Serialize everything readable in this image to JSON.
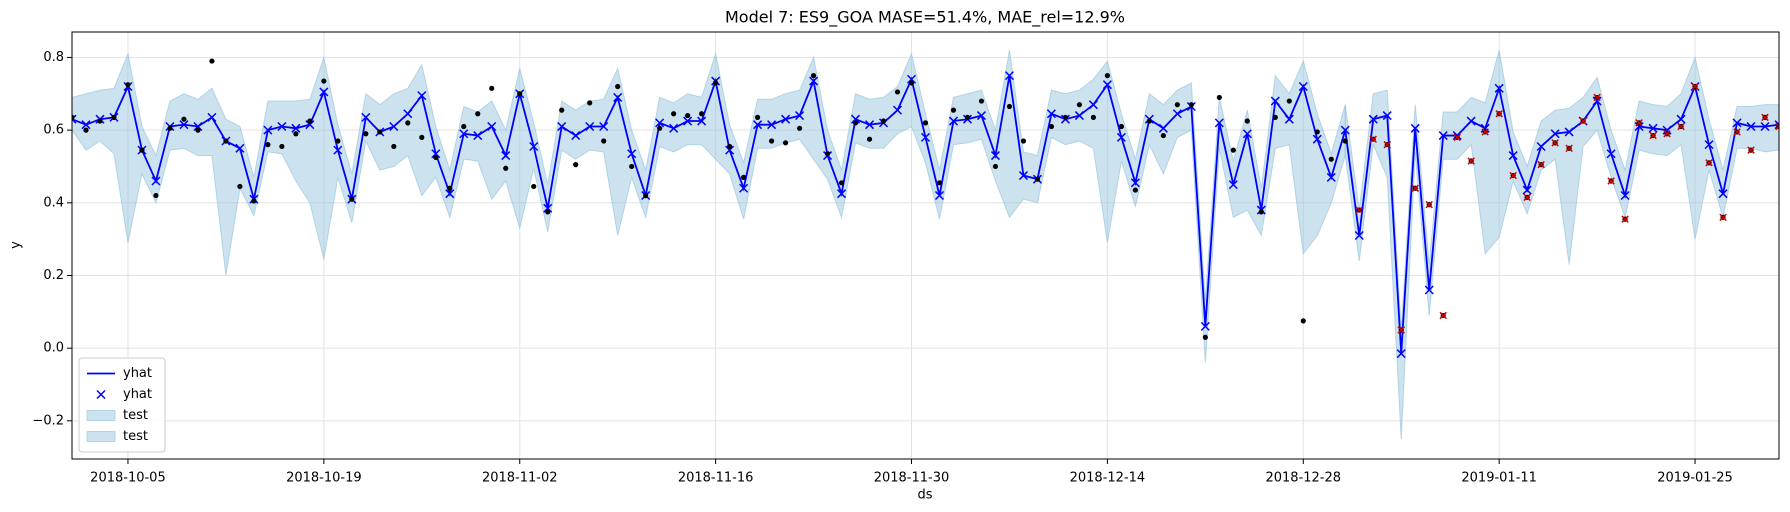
{
  "chart_data": {
    "type": "line",
    "title": "Model 7: ES9_GOA MASE=51.4%, MAE_rel=12.9%",
    "x_label": "ds",
    "y_label": "y",
    "xlim": [
      "2018-10-01",
      "2019-01-31"
    ],
    "xticks": [
      "2018-10-05",
      "2018-10-19",
      "2018-11-02",
      "2018-11-16",
      "2018-11-30",
      "2018-12-14",
      "2018-12-28",
      "2019-01-11",
      "2019-01-25"
    ],
    "ylim": [
      -0.305,
      0.87
    ],
    "yticks": [
      {
        "value": -0.2,
        "label": "−0.2"
      },
      {
        "value": 0,
        "label": "0.0"
      },
      0.2,
      0.4,
      0.6,
      0.8
    ],
    "grid": true,
    "legend": "lower left",
    "x": [
      "2018-10-01",
      "2018-10-02",
      "2018-10-03",
      "2018-10-04",
      "2018-10-05",
      "2018-10-06",
      "2018-10-07",
      "2018-10-08",
      "2018-10-09",
      "2018-10-10",
      "2018-10-11",
      "2018-10-12",
      "2018-10-13",
      "2018-10-14",
      "2018-10-15",
      "2018-10-16",
      "2018-10-17",
      "2018-10-18",
      "2018-10-19",
      "2018-10-20",
      "2018-10-21",
      "2018-10-22",
      "2018-10-23",
      "2018-10-24",
      "2018-10-25",
      "2018-10-26",
      "2018-10-27",
      "2018-10-28",
      "2018-10-29",
      "2018-10-30",
      "2018-10-31",
      "2018-11-01",
      "2018-11-02",
      "2018-11-03",
      "2018-11-04",
      "2018-11-05",
      "2018-11-06",
      "2018-11-07",
      "2018-11-08",
      "2018-11-09",
      "2018-11-10",
      "2018-11-11",
      "2018-11-12",
      "2018-11-13",
      "2018-11-14",
      "2018-11-15",
      "2018-11-16",
      "2018-11-17",
      "2018-11-18",
      "2018-11-19",
      "2018-11-20",
      "2018-11-21",
      "2018-11-22",
      "2018-11-23",
      "2018-11-24",
      "2018-11-25",
      "2018-11-26",
      "2018-11-27",
      "2018-11-28",
      "2018-11-29",
      "2018-11-30",
      "2018-12-01",
      "2018-12-02",
      "2018-12-03",
      "2018-12-04",
      "2018-12-05",
      "2018-12-06",
      "2018-12-07",
      "2018-12-08",
      "2018-12-09",
      "2018-12-10",
      "2018-12-11",
      "2018-12-12",
      "2018-12-13",
      "2018-12-14",
      "2018-12-15",
      "2018-12-16",
      "2018-12-17",
      "2018-12-18",
      "2018-12-19",
      "2018-12-20",
      "2018-12-21",
      "2018-12-22",
      "2018-12-23",
      "2018-12-24",
      "2018-12-25",
      "2018-12-26",
      "2018-12-27",
      "2018-12-28",
      "2018-12-29",
      "2018-12-30",
      "2018-12-31",
      "2019-01-01",
      "2019-01-02",
      "2019-01-03",
      "2019-01-04",
      "2019-01-05",
      "2019-01-06",
      "2019-01-07",
      "2019-01-08",
      "2019-01-09",
      "2019-01-10",
      "2019-01-11",
      "2019-01-12",
      "2019-01-13",
      "2019-01-14",
      "2019-01-15",
      "2019-01-16",
      "2019-01-17",
      "2019-01-18",
      "2019-01-19",
      "2019-01-20",
      "2019-01-21",
      "2019-01-22",
      "2019-01-23",
      "2019-01-24",
      "2019-01-25",
      "2019-01-26",
      "2019-01-27",
      "2019-01-28",
      "2019-01-29",
      "2019-01-30",
      "2019-01-31"
    ],
    "series": [
      {
        "name": "yhat",
        "color": "#0000ff",
        "line": true,
        "marker": "x",
        "values": [
          0.63,
          0.615,
          0.63,
          0.635,
          0.72,
          0.545,
          0.46,
          0.61,
          0.615,
          0.61,
          0.635,
          0.57,
          0.55,
          0.41,
          0.6,
          0.61,
          0.605,
          0.615,
          0.705,
          0.545,
          0.41,
          0.635,
          0.595,
          0.61,
          0.645,
          0.695,
          0.535,
          0.425,
          0.59,
          0.585,
          0.61,
          0.53,
          0.7,
          0.555,
          0.385,
          0.61,
          0.585,
          0.61,
          0.61,
          0.69,
          0.535,
          0.42,
          0.62,
          0.605,
          0.625,
          0.625,
          0.735,
          0.545,
          0.44,
          0.615,
          0.615,
          0.63,
          0.64,
          0.735,
          0.53,
          0.425,
          0.63,
          0.615,
          0.62,
          0.655,
          0.74,
          0.58,
          0.42,
          0.625,
          0.63,
          0.64,
          0.53,
          0.75,
          0.475,
          0.465,
          0.645,
          0.63,
          0.64,
          0.67,
          0.725,
          0.58,
          0.455,
          0.63,
          0.605,
          0.645,
          0.665,
          0.06,
          0.62,
          0.45,
          0.59,
          0.38,
          0.68,
          0.63,
          0.72,
          0.575,
          0.47,
          0.6,
          0.31,
          0.63,
          0.64,
          -0.015,
          0.605,
          0.16,
          0.585,
          0.585,
          0.625,
          0.605,
          0.715,
          0.53,
          0.435,
          0.555,
          0.59,
          0.595,
          0.625,
          0.68,
          0.535,
          0.42,
          0.61,
          0.605,
          0.6,
          0.63,
          0.72,
          0.56,
          0.425,
          0.62,
          0.61,
          0.61,
          0.615
        ]
      },
      {
        "color": "#000000",
        "marker": "dot",
        "values": [
          0.635,
          0.6,
          0.625,
          0.635,
          0.725,
          0.545,
          0.42,
          0.605,
          0.63,
          0.6,
          0.79,
          0.57,
          0.445,
          0.405,
          0.56,
          0.555,
          0.59,
          0.625,
          0.735,
          0.57,
          0.41,
          0.59,
          0.595,
          0.555,
          0.62,
          0.58,
          0.525,
          0.44,
          0.61,
          0.645,
          0.715,
          0.495,
          0.7,
          0.445,
          0.375,
          0.655,
          0.505,
          0.675,
          0.57,
          0.72,
          0.5,
          0.42,
          0.605,
          0.645,
          0.64,
          0.645,
          0.73,
          0.555,
          0.47,
          0.635,
          0.57,
          0.565,
          0.605,
          0.75,
          0.535,
          0.455,
          0.62,
          0.575,
          0.625,
          0.705,
          0.73,
          0.62,
          0.455,
          0.655,
          0.635,
          0.68,
          0.5,
          0.665,
          0.57,
          0.465,
          0.61,
          0.635,
          0.67,
          0.635,
          0.75,
          0.61,
          0.435,
          0.625,
          0.585,
          0.67,
          0.67,
          0.03,
          0.69,
          0.545,
          0.625,
          0.375,
          0.635,
          0.68,
          0.075,
          0.595,
          0.52,
          0.57,
          null,
          null,
          null,
          null,
          null,
          null,
          null,
          null,
          null,
          null,
          null,
          null,
          null,
          null,
          null,
          null,
          null,
          null,
          null,
          null,
          null,
          null,
          null,
          null,
          null,
          null,
          null,
          null,
          null,
          null,
          null
        ]
      },
      {
        "color": "#cc0000",
        "dot_color": "#000000",
        "marker": "dotx",
        "values": [
          null,
          null,
          null,
          null,
          null,
          null,
          null,
          null,
          null,
          null,
          null,
          null,
          null,
          null,
          null,
          null,
          null,
          null,
          null,
          null,
          null,
          null,
          null,
          null,
          null,
          null,
          null,
          null,
          null,
          null,
          null,
          null,
          null,
          null,
          null,
          null,
          null,
          null,
          null,
          null,
          null,
          null,
          null,
          null,
          null,
          null,
          null,
          null,
          null,
          null,
          null,
          null,
          null,
          null,
          null,
          null,
          null,
          null,
          null,
          null,
          null,
          null,
          null,
          null,
          null,
          null,
          null,
          null,
          null,
          null,
          null,
          null,
          null,
          null,
          null,
          null,
          null,
          null,
          null,
          null,
          null,
          null,
          null,
          null,
          null,
          null,
          null,
          null,
          null,
          null,
          null,
          null,
          0.38,
          0.575,
          0.56,
          0.05,
          0.44,
          0.395,
          0.09,
          0.58,
          0.515,
          0.595,
          0.645,
          0.475,
          0.415,
          0.505,
          0.565,
          0.55,
          0.625,
          0.69,
          0.46,
          0.355,
          0.62,
          0.585,
          0.59,
          0.61,
          0.72,
          0.51,
          0.36,
          0.595,
          0.545,
          0.635,
          0.61
        ]
      }
    ],
    "bands": [
      {
        "name": "test",
        "color": "#8fc0dc",
        "upper": [
          0.69,
          0.7,
          0.71,
          0.715,
          0.81,
          0.61,
          0.53,
          0.68,
          0.7,
          0.685,
          0.715,
          0.63,
          0.61,
          0.47,
          0.68,
          0.68,
          0.68,
          0.685,
          0.8,
          0.615,
          0.48,
          0.7,
          0.67,
          0.7,
          0.715,
          0.78,
          0.61,
          0.49,
          0.665,
          0.65,
          0.68,
          0.6,
          0.77,
          0.62,
          0.45,
          0.68,
          0.655,
          0.68,
          0.685,
          0.77,
          0.6,
          0.49,
          0.69,
          0.675,
          0.7,
          0.69,
          0.81,
          0.615,
          0.51,
          0.685,
          0.685,
          0.7,
          0.71,
          0.8,
          0.6,
          0.49,
          0.7,
          0.685,
          0.69,
          0.72,
          0.81,
          0.645,
          0.49,
          0.69,
          0.7,
          0.71,
          0.6,
          0.82,
          0.54,
          0.53,
          0.71,
          0.7,
          0.71,
          0.74,
          0.79,
          0.645,
          0.52,
          0.7,
          0.67,
          0.71,
          0.73,
          0.13,
          0.69,
          0.515,
          0.655,
          0.44,
          0.75,
          0.7,
          0.79,
          0.645,
          0.535,
          0.67,
          null,
          null,
          null,
          null,
          null,
          null,
          null,
          null,
          null,
          null,
          null,
          null,
          null,
          null,
          null,
          null,
          null,
          null,
          null,
          null,
          null,
          null,
          null,
          null,
          null,
          null,
          null,
          null,
          null,
          null,
          null
        ],
        "lower": [
          0.6,
          0.545,
          0.57,
          0.535,
          0.29,
          0.48,
          0.4,
          0.545,
          0.55,
          0.53,
          0.53,
          0.2,
          0.44,
          0.365,
          0.54,
          0.535,
          0.46,
          0.4,
          0.245,
          0.47,
          0.345,
          0.57,
          0.49,
          0.5,
          0.53,
          0.42,
          0.47,
          0.36,
          0.52,
          0.515,
          0.41,
          0.46,
          0.33,
          0.495,
          0.32,
          0.545,
          0.52,
          0.545,
          0.54,
          0.31,
          0.47,
          0.36,
          0.555,
          0.54,
          0.56,
          0.56,
          0.52,
          0.48,
          0.355,
          0.55,
          0.55,
          0.565,
          0.575,
          0.52,
          0.465,
          0.36,
          0.565,
          0.55,
          0.55,
          0.59,
          0.61,
          0.51,
          0.355,
          0.56,
          0.565,
          0.575,
          0.46,
          0.36,
          0.41,
          0.4,
          0.58,
          0.56,
          0.57,
          0.55,
          0.29,
          0.515,
          0.39,
          0.56,
          0.48,
          0.58,
          0.6,
          -0.04,
          0.55,
          0.36,
          0.38,
          0.31,
          0.55,
          0.56,
          0.26,
          0.31,
          0.4,
          0.53,
          null,
          null,
          null,
          null,
          null,
          null,
          null,
          null,
          null,
          null,
          null,
          null,
          null,
          null,
          null,
          null,
          null,
          null,
          null,
          null,
          null,
          null,
          null,
          null,
          null,
          null,
          null,
          null,
          null,
          null,
          null
        ]
      },
      {
        "name": "test",
        "color": "#8fc0dc",
        "upper": [
          null,
          null,
          null,
          null,
          null,
          null,
          null,
          null,
          null,
          null,
          null,
          null,
          null,
          null,
          null,
          null,
          null,
          null,
          null,
          null,
          null,
          null,
          null,
          null,
          null,
          null,
          null,
          null,
          null,
          null,
          null,
          null,
          null,
          null,
          null,
          null,
          null,
          null,
          null,
          null,
          null,
          null,
          null,
          null,
          null,
          null,
          null,
          null,
          null,
          null,
          null,
          null,
          null,
          null,
          null,
          null,
          null,
          null,
          null,
          null,
          null,
          null,
          null,
          null,
          null,
          null,
          null,
          null,
          null,
          null,
          null,
          null,
          null,
          null,
          null,
          null,
          null,
          null,
          null,
          null,
          null,
          null,
          null,
          null,
          null,
          null,
          null,
          null,
          null,
          null,
          null,
          0.67,
          0.38,
          0.7,
          0.71,
          0.05,
          0.67,
          0.23,
          0.65,
          0.65,
          0.69,
          0.675,
          0.82,
          0.595,
          0.5,
          0.625,
          0.655,
          0.66,
          0.69,
          0.745,
          0.6,
          0.49,
          0.68,
          0.67,
          0.665,
          0.7,
          0.8,
          0.63,
          0.49,
          0.665,
          0.665,
          0.67,
          0.67
        ],
        "lower": [
          null,
          null,
          null,
          null,
          null,
          null,
          null,
          null,
          null,
          null,
          null,
          null,
          null,
          null,
          null,
          null,
          null,
          null,
          null,
          null,
          null,
          null,
          null,
          null,
          null,
          null,
          null,
          null,
          null,
          null,
          null,
          null,
          null,
          null,
          null,
          null,
          null,
          null,
          null,
          null,
          null,
          null,
          null,
          null,
          null,
          null,
          null,
          null,
          null,
          null,
          null,
          null,
          null,
          null,
          null,
          null,
          null,
          null,
          null,
          null,
          null,
          null,
          null,
          null,
          null,
          null,
          null,
          null,
          null,
          null,
          null,
          null,
          null,
          null,
          null,
          null,
          null,
          null,
          null,
          null,
          null,
          null,
          null,
          null,
          null,
          null,
          null,
          null,
          null,
          null,
          null,
          0.53,
          0.24,
          0.56,
          0.47,
          -0.25,
          0.54,
          0.09,
          0.52,
          0.52,
          0.56,
          0.26,
          0.305,
          0.46,
          0.37,
          0.49,
          0.52,
          0.23,
          0.555,
          0.6,
          0.47,
          0.36,
          0.545,
          0.535,
          0.53,
          0.56,
          0.3,
          0.49,
          0.36,
          0.55,
          0.55,
          0.54,
          0.545
        ]
      }
    ]
  }
}
